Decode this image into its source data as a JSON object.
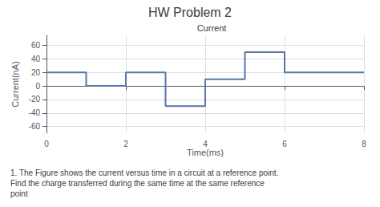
{
  "chart_data": {
    "type": "line",
    "title": "HW Problem 2",
    "subtitle": "Current",
    "xlabel": "Time(ms)",
    "ylabel": "Current(nA)",
    "x": [
      0,
      1,
      1,
      2,
      2,
      3,
      3,
      4,
      4,
      5,
      5,
      6,
      6,
      8
    ],
    "values": [
      20,
      20,
      0,
      0,
      20,
      20,
      -30,
      -30,
      10,
      10,
      50,
      50,
      20,
      20
    ],
    "color": "#5577aa",
    "xlim": [
      0,
      8
    ],
    "xticks": [
      0,
      2,
      4,
      6,
      8
    ],
    "ylim": [
      -70,
      75
    ],
    "yticks": [
      -60,
      -40,
      -20,
      0,
      20,
      40,
      60
    ],
    "grid": true,
    "annotation": "1. The Figure shows the current versus time in a circuit at a reference point.\nFind the charge transferred during the same time at the same reference\npoint"
  }
}
